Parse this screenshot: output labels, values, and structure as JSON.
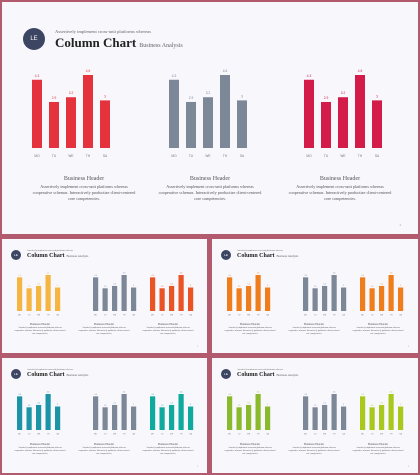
{
  "logo_text": "LE",
  "subtitle": "Assertively implement cross-unit platforms whereas",
  "title": "Column Chart",
  "title_sub": "Business Analysis",
  "block_header": "Business Header",
  "block_body": [
    "Assertively implement cross-unit platforms whereas",
    "cooperative schemas. Interactively productize client-centered",
    "core competencies."
  ],
  "page_number": "1",
  "chart_data": {
    "type": "bar",
    "categories": [
      "MO",
      "TU",
      "WE",
      "TH",
      "SA"
    ],
    "values": [
      4.3,
      2.9,
      3.2,
      4.6,
      3.0
    ],
    "value_labels": [
      "4.3",
      "2.9",
      "3.2",
      "4.6",
      "3"
    ]
  },
  "colors": {
    "slide_bg": "#f7f7fc",
    "frame_border": "#b25b6e",
    "slate": "#7c8798",
    "big": [
      "#e5333e",
      "#7c8798",
      "#d31c49"
    ],
    "s1": [
      "#f5b540",
      "#7c8798",
      "#ea5324"
    ],
    "s2": [
      "#f07d1c",
      "#7c8798",
      "#f07d1c"
    ],
    "s3": [
      "#1a94a6",
      "#7c8798",
      "#0eaa9e"
    ],
    "s4": [
      "#8bb92c",
      "#7c8798",
      "#a8c81e"
    ]
  }
}
